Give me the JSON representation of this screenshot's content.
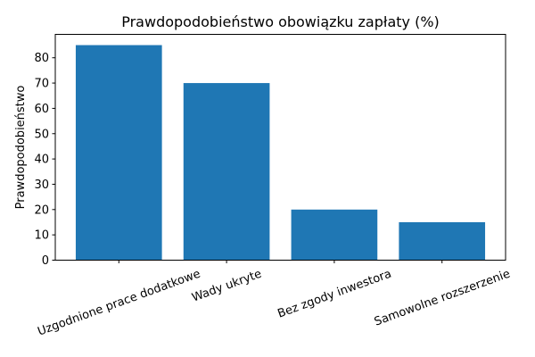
{
  "chart_data": {
    "type": "bar",
    "title": "Prawdopodobieństwo obowiązku zapłaty (%)",
    "xlabel": "",
    "ylabel": "Prawdopodobieństwo",
    "categories": [
      "Uzgodnione prace dodatkowe",
      "Wady ukryte",
      "Bez zgody inwestora",
      "Samowolne rozszerzenie"
    ],
    "values": [
      85,
      70,
      20,
      15
    ],
    "ylim": [
      0,
      89.25
    ],
    "yticks": [
      0,
      10,
      20,
      30,
      40,
      50,
      60,
      70,
      80
    ],
    "xtick_rotation": 20,
    "grid": false,
    "bar_color": "#1f77b4"
  }
}
